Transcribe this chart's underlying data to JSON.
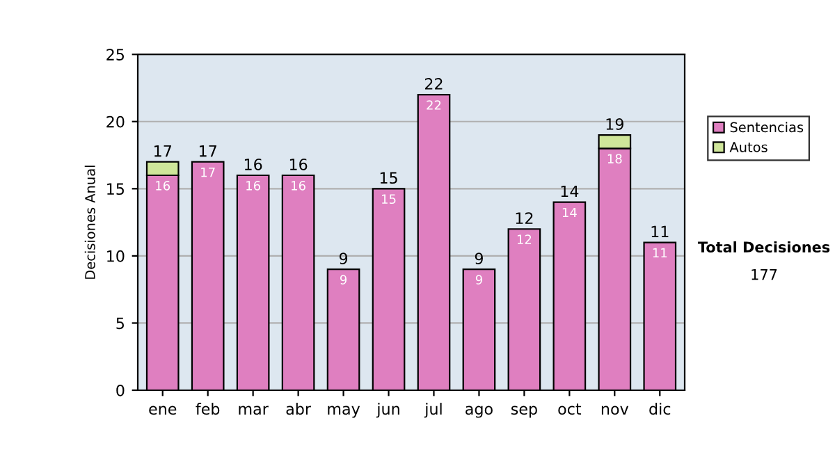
{
  "chart_data": {
    "type": "bar",
    "stacked": true,
    "ylabel": "Decisiones Anual",
    "categories": [
      "ene",
      "feb",
      "mar",
      "abr",
      "may",
      "jun",
      "jul",
      "ago",
      "sep",
      "oct",
      "nov",
      "dic"
    ],
    "series": [
      {
        "name": "Sentencias",
        "color": "#df7fc0",
        "values": [
          16,
          17,
          16,
          16,
          9,
          15,
          22,
          9,
          12,
          14,
          18,
          11
        ],
        "value_labels": [
          "16",
          "17",
          "16",
          "16",
          "9",
          "15",
          "22",
          "9",
          "12",
          "14",
          "18",
          "11"
        ]
      },
      {
        "name": "Autos",
        "color": "#cfe69a",
        "values": [
          1,
          0,
          0,
          0,
          0,
          0,
          0,
          0,
          0,
          0,
          1,
          0
        ]
      }
    ],
    "totals": [
      "17",
      "17",
      "16",
      "16",
      "9",
      "15",
      "22",
      "9",
      "12",
      "14",
      "19",
      "11"
    ],
    "ylim": [
      0,
      25
    ],
    "yticks": [
      0,
      5,
      10,
      15,
      20,
      25
    ],
    "grid": "y",
    "legend": "right",
    "annotations": [
      "Total Decisiones",
      "177"
    ]
  }
}
